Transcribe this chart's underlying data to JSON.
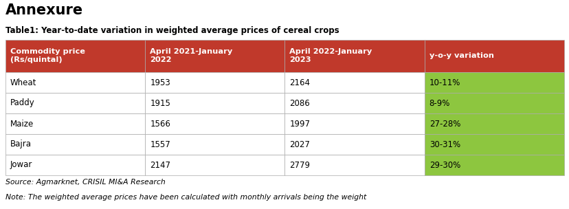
{
  "title": "Annexure",
  "subtitle": "Table1: Year-to-date variation in weighted average prices of cereal crops",
  "headers": [
    "Commodity price\n(Rs/quintal)",
    "April 2021-January\n2022",
    "April 2022-January\n2023",
    "y-o-y variation"
  ],
  "rows": [
    [
      "Wheat",
      "1953",
      "2164",
      "10-11%"
    ],
    [
      "Paddy",
      "1915",
      "2086",
      "8-9%"
    ],
    [
      "Maize",
      "1566",
      "1997",
      "27-28%"
    ],
    [
      "Bajra",
      "1557",
      "2027",
      "30-31%"
    ],
    [
      "Jowar",
      "2147",
      "2779",
      "29-30%"
    ]
  ],
  "header_bg": "#C0392B",
  "header_text": "#FFFFFF",
  "row_bg": "#FFFFFF",
  "row_text": "#000000",
  "yoy_bg": "#8DC63F",
  "yoy_text": "#000000",
  "source_text": "Source: Agmarknet, CRISIL MI&A Research",
  "note_text": "Note: The weighted average prices have been calculated with monthly arrivals being the weight",
  "border_color": "#AAAAAA",
  "figure_bg": "#FFFFFF",
  "title_fontsize": 15,
  "subtitle_fontsize": 8.5,
  "header_fontsize": 8.2,
  "cell_fontsize": 8.5,
  "note_fontsize": 7.8
}
